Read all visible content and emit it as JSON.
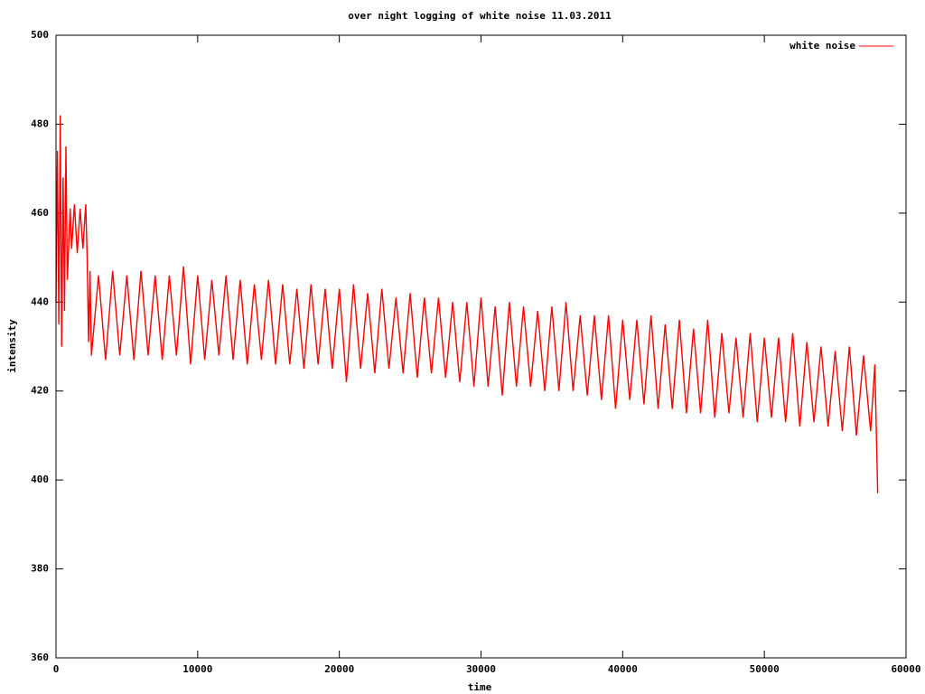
{
  "chart_data": {
    "type": "line",
    "title": "over night logging of white noise 11.03.2011",
    "x_label": "time",
    "y_label": "intensity",
    "xlim": [
      0,
      60000
    ],
    "xticks": [
      0,
      10000,
      20000,
      30000,
      40000,
      50000,
      60000
    ],
    "ylim": [
      360,
      500
    ],
    "yticks": [
      360,
      380,
      400,
      420,
      440,
      460,
      480,
      500
    ],
    "grid": false,
    "legend": "top-right",
    "x": [
      0,
      100,
      200,
      300,
      400,
      500,
      600,
      700,
      800,
      1000,
      1100,
      1300,
      1500,
      1700,
      1900,
      2100,
      2200,
      2300,
      2400,
      2500,
      3000,
      3500,
      4000,
      4500,
      5000,
      5500,
      6000,
      6500,
      7000,
      7500,
      8000,
      8500,
      9000,
      9500,
      10000,
      10500,
      11000,
      11500,
      12000,
      12500,
      13000,
      13500,
      14000,
      14500,
      15000,
      15500,
      16000,
      16500,
      17000,
      17500,
      18000,
      18500,
      19000,
      19500,
      20000,
      20500,
      21000,
      21500,
      22000,
      22500,
      23000,
      23500,
      24000,
      24500,
      25000,
      25500,
      26000,
      26500,
      27000,
      27500,
      28000,
      28500,
      29000,
      29500,
      30000,
      30500,
      31000,
      31500,
      32000,
      32500,
      33000,
      33500,
      34000,
      34500,
      35000,
      35500,
      36000,
      36500,
      37000,
      37500,
      38000,
      38500,
      39000,
      39500,
      40000,
      40500,
      41000,
      41500,
      42000,
      42500,
      43000,
      43500,
      44000,
      44500,
      45000,
      45500,
      46000,
      46500,
      47000,
      47500,
      48000,
      48500,
      49000,
      49500,
      50000,
      50500,
      51000,
      51500,
      52000,
      52500,
      53000,
      53500,
      54000,
      54500,
      55000,
      55500,
      56000,
      56500,
      57000,
      57500,
      57800,
      58000
    ],
    "series": [
      {
        "name": "white noise",
        "color": "#ff0000",
        "values": [
          440,
          474,
          435,
          482,
          430,
          468,
          438,
          475,
          445,
          461,
          452,
          462,
          451,
          461,
          452,
          462,
          450,
          431,
          447,
          428,
          446,
          427,
          447,
          428,
          446,
          427,
          447,
          428,
          446,
          427,
          446,
          428,
          448,
          426,
          446,
          427,
          445,
          428,
          446,
          427,
          445,
          426,
          444,
          427,
          445,
          426,
          444,
          426,
          443,
          425,
          444,
          426,
          443,
          425,
          443,
          422,
          444,
          425,
          442,
          424,
          443,
          425,
          441,
          424,
          442,
          423,
          441,
          424,
          441,
          423,
          440,
          422,
          440,
          421,
          441,
          421,
          439,
          419,
          440,
          421,
          439,
          421,
          438,
          420,
          439,
          420,
          440,
          420,
          437,
          419,
          437,
          418,
          437,
          416,
          436,
          418,
          436,
          417,
          437,
          416,
          435,
          416,
          436,
          415,
          434,
          415,
          436,
          414,
          433,
          415,
          432,
          414,
          433,
          413,
          432,
          414,
          432,
          413,
          433,
          412,
          431,
          413,
          430,
          412,
          429,
          411,
          430,
          410,
          428,
          411,
          426,
          397
        ]
      }
    ]
  }
}
